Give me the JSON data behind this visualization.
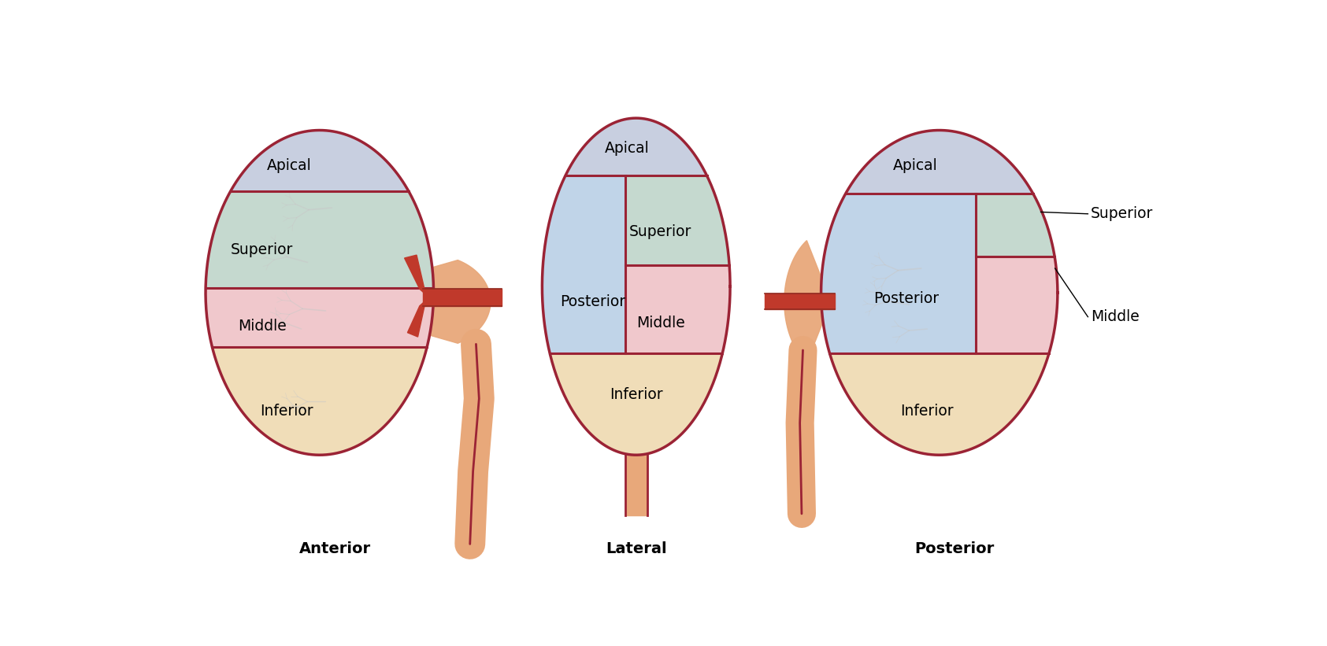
{
  "background": "#ffffff",
  "colors": {
    "apical": "#c8cfe0",
    "superior": "#c5d9cf",
    "middle": "#f0c8cc",
    "inferior": "#f0ddb8",
    "posterior": "#c0d4e8",
    "artery": "#c0392b",
    "artery_dark": "#922b21",
    "outline": "#9b2335",
    "branch": "#c8c8c8",
    "pelvis": "#e8a87a",
    "ureter": "#d4926a"
  },
  "labels": {
    "anterior": "Anterior",
    "lateral": "Lateral",
    "posterior": "Posterior",
    "apical": "Apical",
    "superior": "Superior",
    "middle": "Middle",
    "inferior": "Inferior",
    "posterior_seg": "Posterior"
  },
  "views": [
    "Anterior",
    "Lateral",
    "Posterior"
  ]
}
